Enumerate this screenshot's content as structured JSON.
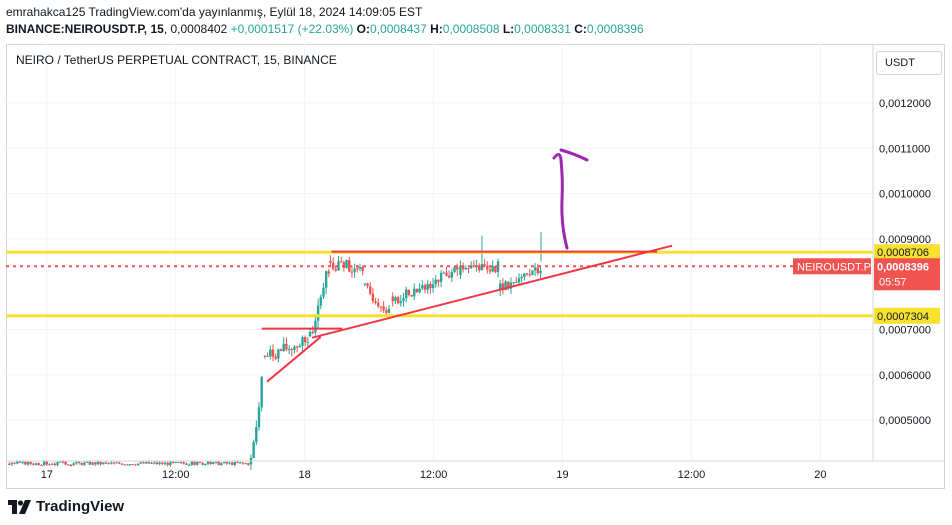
{
  "header": {
    "publisher_line": "emrahakca125 TradingView.com'da yayınlanmış, Eylül 18, 2024 14:09:05 EST",
    "symbol_interval": "BINANCE:NEIROUSDT.P, 15",
    "last": "0,0008402",
    "change": "+0,0001517 (+22.03%)",
    "o_label": "O:",
    "o_value": "0,0008437",
    "h_label": "H:",
    "h_value": "0,0008508",
    "l_label": "L:",
    "l_value": "0,0008331",
    "c_label": "C:",
    "c_value": "0,0008396"
  },
  "title": "NEIRO / TetherUS PERPETUAL CONTRACT, 15, BINANCE",
  "currency_button": "USDT",
  "footer": {
    "brand": "TradingView"
  },
  "colors": {
    "up": "#26a69a",
    "down": "#ef5350",
    "level": "#f5e12e",
    "trendline": "#f23645",
    "arrow": "#9c27b0",
    "grid": "#f0f3fa",
    "price_label_bg": "#f05350",
    "level_label_bg": "#f5e12e"
  },
  "chart_data": {
    "type": "candlestick",
    "symbol": "NEIROUSDT.P",
    "y_axis": {
      "ticks": [
        {
          "value": 0.0012,
          "label": "0,0012000"
        },
        {
          "value": 0.0011,
          "label": "0,0011000"
        },
        {
          "value": 0.001,
          "label": "0,0010000"
        },
        {
          "value": 0.0009,
          "label": "0,0009000"
        },
        {
          "value": 0.0007,
          "label": "0,0007000"
        },
        {
          "value": 0.0006,
          "label": "0,0006000"
        },
        {
          "value": 0.0005,
          "label": "0,0005000"
        }
      ],
      "range": [
        0.00041,
        0.00133
      ]
    },
    "x_axis": {
      "ticks": [
        {
          "hours": 12,
          "label": "17"
        },
        {
          "hours": 24,
          "label": "12:00"
        },
        {
          "hours": 36,
          "label": "18"
        },
        {
          "hours": 48,
          "label": "12:00"
        },
        {
          "hours": 60,
          "label": "19"
        },
        {
          "hours": 72,
          "label": "12:00"
        },
        {
          "hours": 84,
          "label": "20"
        }
      ],
      "range_hours": [
        8.2,
        88.9
      ]
    },
    "horizontal_levels": [
      {
        "price": 0.0008706,
        "label": "0,0008706"
      },
      {
        "price": 0.0007304,
        "label": "0,0007304"
      }
    ],
    "last_price": {
      "price": 0.0008396,
      "symbol_label": "NEIROUSDT.P",
      "value_label": "0,0008396",
      "countdown": "05:57"
    },
    "trend_lines": [
      {
        "from": [
          32.0,
          0.000702
        ],
        "to": [
          39.5,
          0.000702
        ]
      },
      {
        "from": [
          32.5,
          0.000585
        ],
        "to": [
          37.5,
          0.000684
        ]
      },
      {
        "from": [
          36.7,
          0.000682
        ],
        "to": [
          70.2,
          0.000885
        ]
      },
      {
        "from": [
          38.5,
          0.000872
        ],
        "to": [
          68.8,
          0.000872
        ]
      }
    ],
    "segments": [
      {
        "t0": 8.5,
        "t1": 31.0,
        "p0": 0.000405,
        "p1": 0.000405,
        "step": 0.25,
        "noise": 4e-06,
        "seed": 3
      },
      {
        "t0": 31.0,
        "t1": 32.3,
        "p0": 0.000405,
        "p1": 0.000585,
        "step": 0.25,
        "noise": 1.5e-05,
        "seed": 5
      },
      {
        "t0": 32.3,
        "t1": 36.5,
        "p0": 0.00064,
        "p1": 0.000675,
        "step": 0.25,
        "noise": 1.5e-05,
        "seed": 7
      },
      {
        "t0": 36.5,
        "t1": 38.4,
        "p0": 0.00068,
        "p1": 0.00084,
        "step": 0.25,
        "noise": 1.8e-05,
        "seed": 11
      },
      {
        "t0": 38.4,
        "t1": 41.6,
        "p0": 0.000845,
        "p1": 0.000835,
        "step": 0.25,
        "noise": 1.4e-05,
        "seed": 13
      },
      {
        "t0": 41.6,
        "t1": 44.2,
        "p0": 0.00079,
        "p1": 0.00074,
        "step": 0.25,
        "noise": 1.4e-05,
        "seed": 17
      },
      {
        "t0": 44.2,
        "t1": 50.5,
        "p0": 0.00076,
        "p1": 0.00083,
        "step": 0.25,
        "noise": 1.4e-05,
        "seed": 19
      },
      {
        "t0": 50.5,
        "t1": 54.2,
        "p0": 0.00083,
        "p1": 0.00084,
        "step": 0.25,
        "noise": 1.3e-05,
        "seed": 23
      },
      {
        "t0": 54.2,
        "t1": 58.2,
        "p0": 0.00079,
        "p1": 0.00084,
        "step": 0.25,
        "noise": 1.3e-05,
        "seed": 29
      }
    ]
  }
}
